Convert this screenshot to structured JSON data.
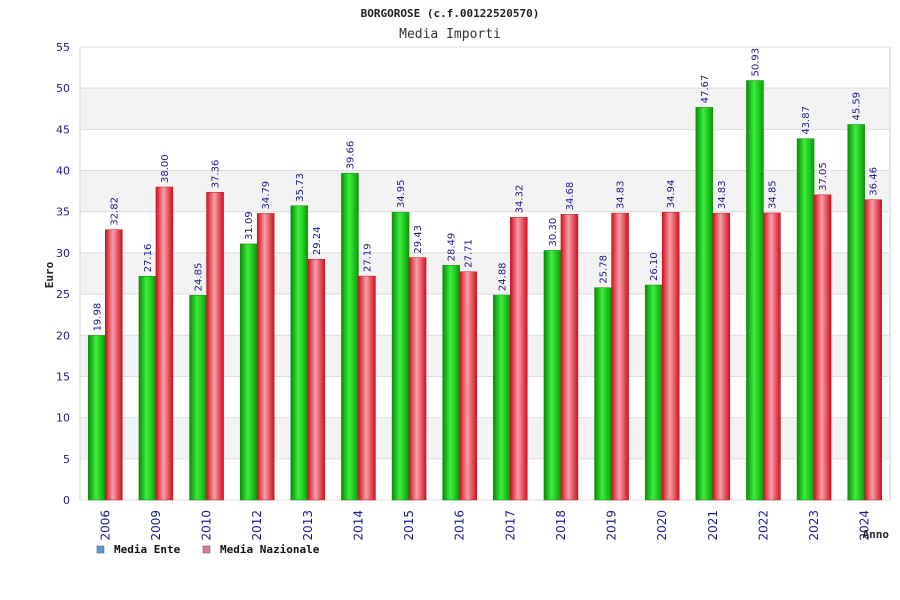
{
  "chart_data": {
    "type": "bar",
    "title": "BORGOROSE (c.f.00122520570)",
    "subtitle": "Media Importi",
    "xlabel": "Anno",
    "ylabel": "Euro",
    "ylim": [
      0,
      55
    ],
    "yticks": [
      "0",
      "5",
      "10",
      "15",
      "20",
      "25",
      "30",
      "35",
      "40",
      "45",
      "50",
      "55"
    ],
    "categories": [
      "2006",
      "2009",
      "2010",
      "2012",
      "2013",
      "2014",
      "2015",
      "2016",
      "2017",
      "2018",
      "2019",
      "2020",
      "2021",
      "2022",
      "2023",
      "2024"
    ],
    "series": [
      {
        "name": "Media Ente",
        "legend_color": "#5b9bd5",
        "bar_color": "#11c811",
        "values": [
          19.98,
          27.16,
          24.85,
          31.09,
          35.73,
          39.66,
          34.95,
          28.49,
          24.88,
          30.3,
          25.78,
          26.1,
          47.67,
          50.93,
          43.87,
          45.59
        ],
        "labels": [
          "19.98",
          "27.16",
          "24.85",
          "31.09",
          "35.73",
          "39.66",
          "34.95",
          "28.49",
          "24.88",
          "30.30",
          "25.78",
          "26.10",
          "47.67",
          "50.93",
          "43.87",
          "45.59"
        ]
      },
      {
        "name": "Media Nazionale",
        "legend_color": "#d97ba0",
        "bar_color": "#ee2233",
        "values": [
          32.82,
          38.0,
          37.36,
          34.79,
          29.24,
          27.19,
          29.43,
          27.71,
          34.32,
          34.68,
          34.83,
          34.94,
          34.83,
          34.85,
          37.05,
          36.46
        ],
        "labels": [
          "32.82",
          "38.00",
          "37.36",
          "34.79",
          "29.24",
          "27.19",
          "29.43",
          "27.71",
          "34.32",
          "34.68",
          "34.83",
          "34.94",
          "34.83",
          "34.85",
          "37.05",
          "36.46"
        ]
      }
    ],
    "grid": true,
    "legend_position": "bottom-left"
  }
}
